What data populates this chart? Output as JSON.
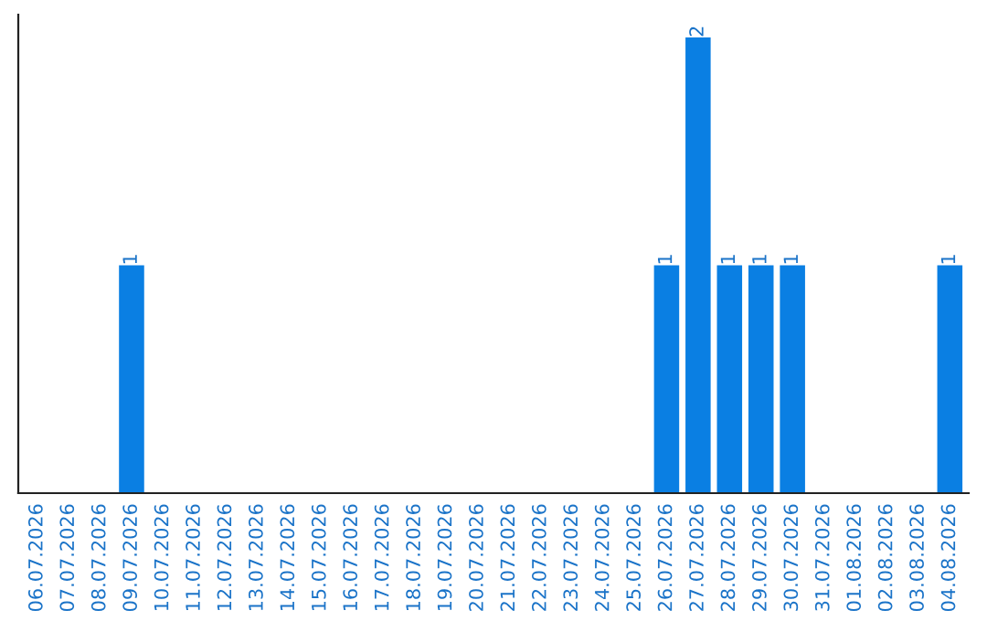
{
  "chart_data": {
    "type": "bar",
    "categories": [
      "06.07.2026",
      "07.07.2026",
      "08.07.2026",
      "09.07.2026",
      "10.07.2026",
      "11.07.2026",
      "12.07.2026",
      "13.07.2026",
      "14.07.2026",
      "15.07.2026",
      "16.07.2026",
      "17.07.2026",
      "18.07.2026",
      "19.07.2026",
      "20.07.2026",
      "21.07.2026",
      "22.07.2026",
      "23.07.2026",
      "24.07.2026",
      "25.07.2026",
      "26.07.2026",
      "27.07.2026",
      "28.07.2026",
      "29.07.2026",
      "30.07.2026",
      "31.07.2026",
      "01.08.2026",
      "02.08.2026",
      "03.08.2026",
      "04.08.2026"
    ],
    "values": [
      0,
      0,
      0,
      1,
      0,
      0,
      0,
      0,
      0,
      0,
      0,
      0,
      0,
      0,
      0,
      0,
      0,
      0,
      0,
      0,
      1,
      2,
      1,
      1,
      1,
      0,
      0,
      0,
      0,
      1
    ],
    "color": "#0a7fe3",
    "value_labels": [
      null,
      null,
      null,
      "1",
      null,
      null,
      null,
      null,
      null,
      null,
      null,
      null,
      null,
      null,
      null,
      null,
      null,
      null,
      null,
      null,
      "1",
      "2",
      "1",
      "1",
      "1",
      null,
      null,
      null,
      null,
      "1"
    ],
    "tick_labels": "x",
    "grid": false
  }
}
